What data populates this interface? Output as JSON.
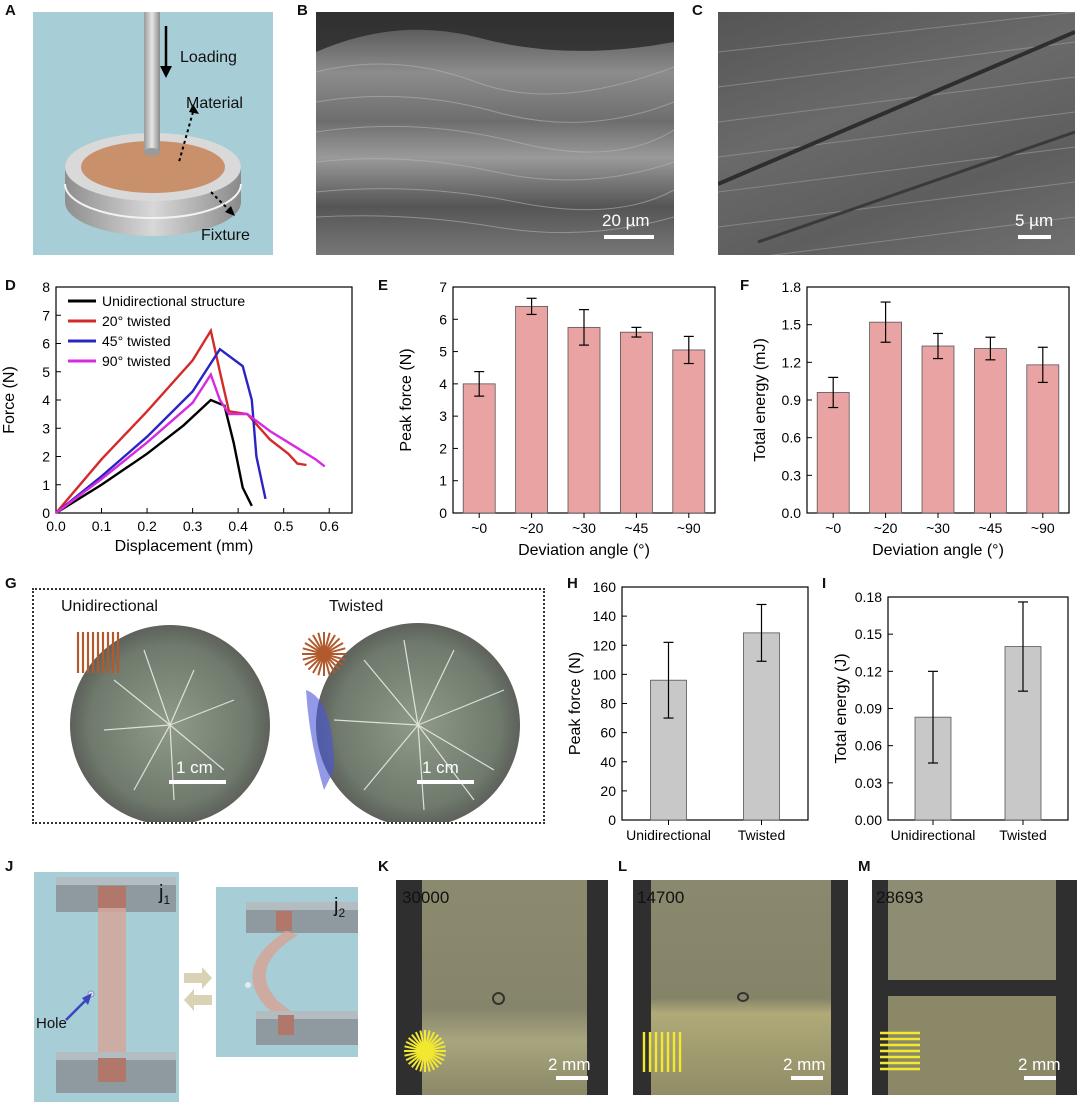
{
  "panels": {
    "A": {
      "label": "A",
      "loading": "Loading",
      "material": "Material",
      "fixture": "Fixture"
    },
    "B": {
      "label": "B",
      "scale": "20 µm"
    },
    "C": {
      "label": "C",
      "scale": "5 µm"
    },
    "D": {
      "label": "D"
    },
    "E": {
      "label": "E"
    },
    "F": {
      "label": "F"
    },
    "G": {
      "label": "G",
      "left_title": "Unidirectional",
      "right_title": "Twisted",
      "left_scale": "1 cm",
      "right_scale": "1 cm"
    },
    "H": {
      "label": "H"
    },
    "I": {
      "label": "I"
    },
    "J": {
      "label": "J",
      "j1": "j",
      "j1_sub": "1",
      "j2": "j",
      "j2_sub": "2",
      "hole": "Hole"
    },
    "K": {
      "label": "K",
      "count": "30000",
      "scale": "2 mm"
    },
    "L": {
      "label": "L",
      "count": "14700",
      "scale": "2 mm"
    },
    "M": {
      "label": "M",
      "count": "28693",
      "scale": "2 mm"
    }
  },
  "colors": {
    "bar_pink": "#e9a3a3",
    "bar_gray": "#c8c8c8",
    "panel_blue": "#a7cdd6",
    "series_black": "#000000",
    "series_red": "#d42a2a",
    "series_blue": "#2b24c4",
    "series_magenta": "#d82ae0"
  },
  "chart_data": [
    {
      "id": "D",
      "type": "line",
      "xlabel": "Displacement (mm)",
      "ylabel": "Force (N)",
      "xlim": [
        0,
        0.65
      ],
      "ylim": [
        0,
        8
      ],
      "xticks": [
        0.0,
        0.1,
        0.2,
        0.3,
        0.4,
        0.5,
        0.6
      ],
      "yticks": [
        0,
        1,
        2,
        3,
        4,
        5,
        6,
        7,
        8
      ],
      "series": [
        {
          "name": "Unidirectional structure",
          "color": "#000000",
          "points": [
            [
              0,
              0
            ],
            [
              0.1,
              1.0
            ],
            [
              0.2,
              2.1
            ],
            [
              0.28,
              3.1
            ],
            [
              0.34,
              4.0
            ],
            [
              0.37,
              3.8
            ],
            [
              0.39,
              2.5
            ],
            [
              0.41,
              0.9
            ],
            [
              0.43,
              0.25
            ]
          ]
        },
        {
          "name": "20° twisted",
          "color": "#d42a2a",
          "points": [
            [
              0,
              0
            ],
            [
              0.1,
              1.9
            ],
            [
              0.2,
              3.6
            ],
            [
              0.3,
              5.4
            ],
            [
              0.34,
              6.45
            ],
            [
              0.36,
              5.0
            ],
            [
              0.38,
              3.6
            ],
            [
              0.42,
              3.5
            ],
            [
              0.47,
              2.6
            ],
            [
              0.51,
              2.1
            ],
            [
              0.53,
              1.75
            ],
            [
              0.55,
              1.7
            ]
          ]
        },
        {
          "name": "45° twisted",
          "color": "#2b24c4",
          "points": [
            [
              0,
              0
            ],
            [
              0.1,
              1.3
            ],
            [
              0.2,
              2.7
            ],
            [
              0.3,
              4.3
            ],
            [
              0.36,
              5.8
            ],
            [
              0.41,
              5.2
            ],
            [
              0.43,
              4.0
            ],
            [
              0.44,
              2.0
            ],
            [
              0.46,
              0.5
            ]
          ]
        },
        {
          "name": "90° twisted",
          "color": "#d82ae0",
          "points": [
            [
              0,
              0
            ],
            [
              0.1,
              1.2
            ],
            [
              0.2,
              2.5
            ],
            [
              0.3,
              3.9
            ],
            [
              0.34,
              4.9
            ],
            [
              0.36,
              4.0
            ],
            [
              0.38,
              3.5
            ],
            [
              0.42,
              3.5
            ],
            [
              0.47,
              2.9
            ],
            [
              0.52,
              2.4
            ],
            [
              0.57,
              1.9
            ],
            [
              0.59,
              1.65
            ]
          ]
        }
      ]
    },
    {
      "id": "E",
      "type": "bar",
      "xlabel": "Deviation angle (°)",
      "ylabel": "Peak force (N)",
      "categories": [
        "~0",
        "~20",
        "~30",
        "~45",
        "~90"
      ],
      "values": [
        4.0,
        6.4,
        5.75,
        5.6,
        5.05
      ],
      "errors": [
        0.38,
        0.25,
        0.55,
        0.15,
        0.42
      ],
      "ylim": [
        0,
        7
      ],
      "yticks": [
        0,
        1,
        2,
        3,
        4,
        5,
        6,
        7
      ]
    },
    {
      "id": "F",
      "type": "bar",
      "xlabel": "Deviation angle (°)",
      "ylabel": "Total energy (mJ)",
      "categories": [
        "~0",
        "~20",
        "~30",
        "~45",
        "~90"
      ],
      "values": [
        0.96,
        1.52,
        1.33,
        1.31,
        1.18
      ],
      "errors": [
        0.12,
        0.16,
        0.1,
        0.09,
        0.14
      ],
      "ylim": [
        0,
        1.8
      ],
      "yticks": [
        "0.0",
        "0.3",
        "0.6",
        "0.9",
        "1.2",
        "1.5",
        "1.8"
      ]
    },
    {
      "id": "H",
      "type": "bar",
      "xlabel": "",
      "ylabel": "Peak force (N)",
      "categories": [
        "Unidirectional",
        "Twisted"
      ],
      "values": [
        96,
        128.5
      ],
      "errors": [
        26,
        19.5
      ],
      "ylim": [
        0,
        160
      ],
      "yticks": [
        0,
        20,
        40,
        60,
        80,
        100,
        120,
        140,
        160
      ]
    },
    {
      "id": "I",
      "type": "bar",
      "xlabel": "",
      "ylabel": "Total energy (J)",
      "categories": [
        "Unidirectional",
        "Twisted"
      ],
      "values": [
        0.083,
        0.14
      ],
      "errors": [
        0.037,
        0.036
      ],
      "ylim": [
        0,
        0.18
      ],
      "yticks": [
        "0.00",
        "0.03",
        "0.06",
        "0.09",
        "0.12",
        "0.15",
        "0.18"
      ]
    }
  ]
}
